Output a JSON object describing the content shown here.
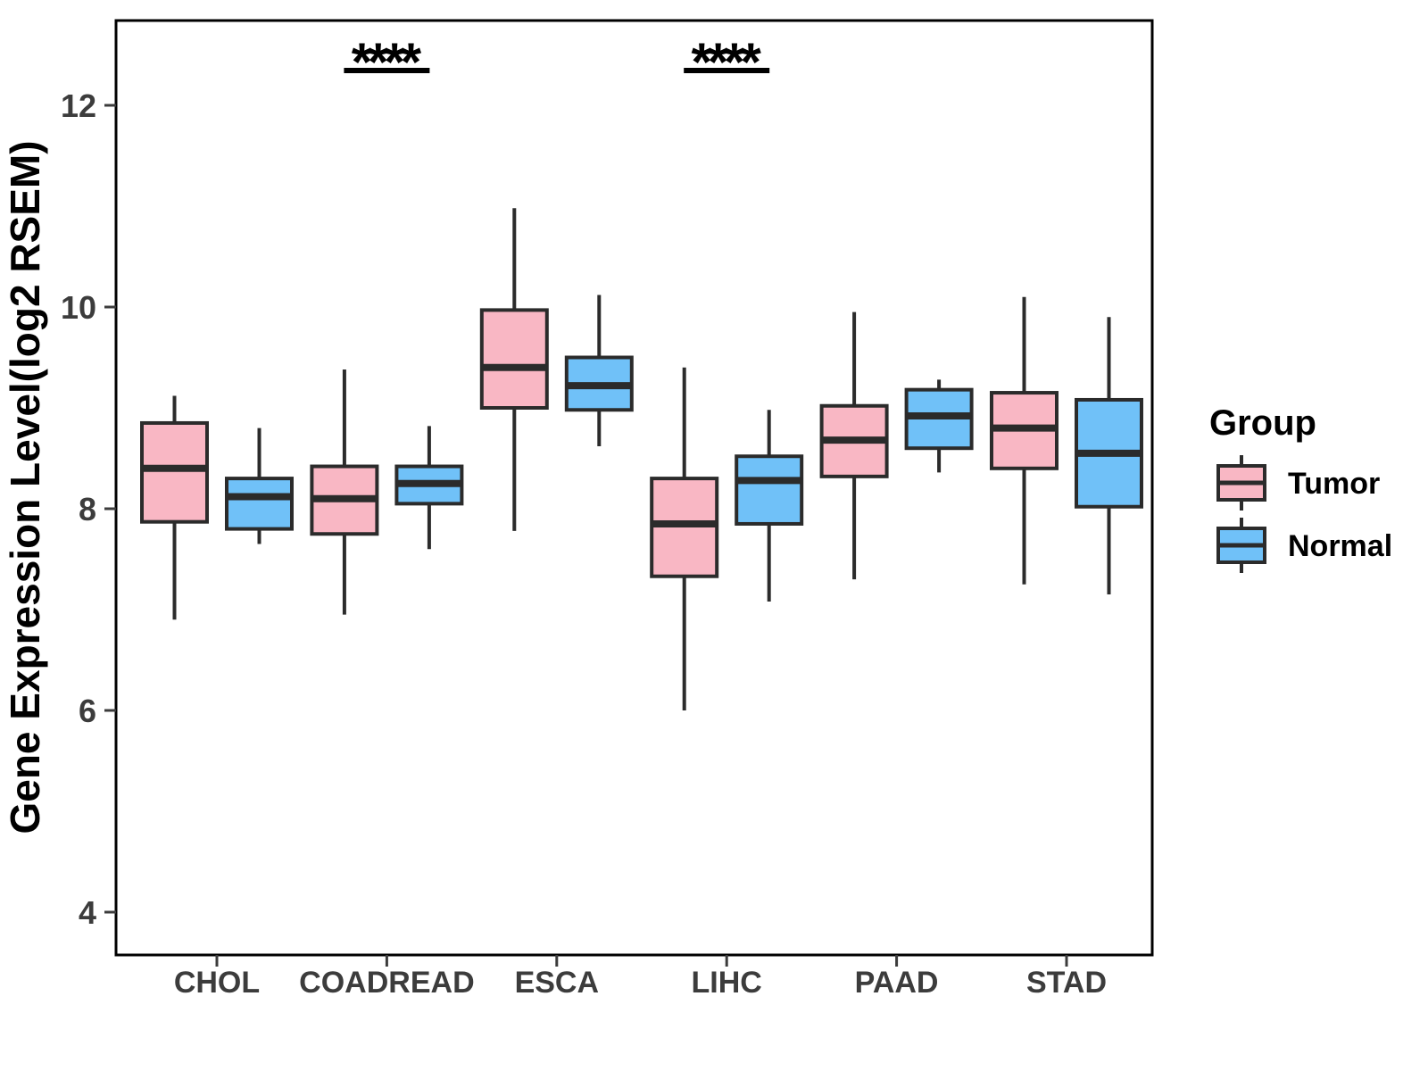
{
  "figure": {
    "background": "#ffffff"
  },
  "chart_data": {
    "type": "boxplot",
    "title": "",
    "xlabel": "",
    "ylabel": "Gene Expression Level(log2 RSEM)",
    "y_ticks": [
      4,
      6,
      8,
      10,
      12
    ],
    "y_range": [
      3.55,
      12.85
    ],
    "grid": false,
    "categories": [
      "CHOL",
      "COADREAD",
      "ESCA",
      "LIHC",
      "PAAD",
      "STAD"
    ],
    "series": [
      {
        "name": "Tumor",
        "fill_color": "#F9B7C4",
        "boxes": [
          {
            "category": "CHOL",
            "whisker_low": 6.9,
            "q1": 7.87,
            "median": 8.4,
            "q3": 8.85,
            "whisker_high": 9.12
          },
          {
            "category": "COADREAD",
            "whisker_low": 6.95,
            "q1": 7.75,
            "median": 8.1,
            "q3": 8.42,
            "whisker_high": 9.38
          },
          {
            "category": "ESCA",
            "whisker_low": 7.78,
            "q1": 9.0,
            "median": 9.4,
            "q3": 9.97,
            "whisker_high": 10.98
          },
          {
            "category": "LIHC",
            "whisker_low": 6.0,
            "q1": 7.33,
            "median": 7.85,
            "q3": 8.3,
            "whisker_high": 9.4
          },
          {
            "category": "PAAD",
            "whisker_low": 7.3,
            "q1": 8.32,
            "median": 8.68,
            "q3": 9.02,
            "whisker_high": 9.95
          },
          {
            "category": "STAD",
            "whisker_low": 7.25,
            "q1": 8.4,
            "median": 8.8,
            "q3": 9.15,
            "whisker_high": 10.1
          }
        ]
      },
      {
        "name": "Normal",
        "fill_color": "#70C1F8",
        "boxes": [
          {
            "category": "CHOL",
            "whisker_low": 7.65,
            "q1": 7.8,
            "median": 8.12,
            "q3": 8.3,
            "whisker_high": 8.8
          },
          {
            "category": "COADREAD",
            "whisker_low": 7.6,
            "q1": 8.05,
            "median": 8.25,
            "q3": 8.42,
            "whisker_high": 8.82
          },
          {
            "category": "ESCA",
            "whisker_low": 8.62,
            "q1": 8.98,
            "median": 9.22,
            "q3": 9.5,
            "whisker_high": 10.12
          },
          {
            "category": "LIHC",
            "whisker_low": 7.08,
            "q1": 7.85,
            "median": 8.28,
            "q3": 8.52,
            "whisker_high": 8.98
          },
          {
            "category": "PAAD",
            "whisker_low": 8.36,
            "q1": 8.6,
            "median": 8.92,
            "q3": 9.18,
            "whisker_high": 9.28
          },
          {
            "category": "STAD",
            "whisker_low": 7.15,
            "q1": 8.02,
            "median": 8.55,
            "q3": 9.08,
            "whisker_high": 9.9
          }
        ]
      }
    ],
    "annotations": [
      {
        "category": "COADREAD",
        "label": "****"
      },
      {
        "category": "LIHC",
        "label": "****"
      }
    ],
    "legend": {
      "title": "Group",
      "position": "right",
      "entries": [
        "Tumor",
        "Normal"
      ]
    },
    "style": {
      "box_border_color": "#2B2B2B",
      "panel_border_color": "#000000",
      "axis_text_color": "#3C3C3C",
      "title_color": "#000000",
      "annotation_color": "#000000"
    }
  }
}
